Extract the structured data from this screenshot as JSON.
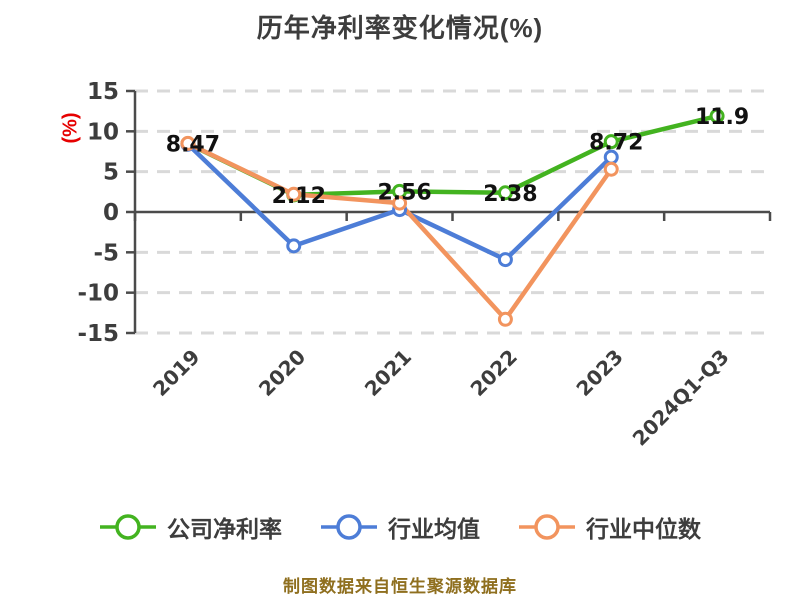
{
  "title": "历年净利率变化情况(%)",
  "footer": "制图数据来自恒生聚源数据库",
  "colors": {
    "company_green": "#43B320",
    "industry_mean_blue": "#4D7DD7",
    "industry_median_orange": "#F2945E",
    "ylabel_red": "#E60000",
    "axis": "#4B4B4B",
    "grid": "#D9D9D9",
    "text": "#3D3D3D",
    "point_label": "#111111",
    "footer_text": "#8F6F1F",
    "marker_fill": "#FFFFFF"
  },
  "chart_data": {
    "type": "line",
    "title": "历年净利率变化情况(%)",
    "categories": [
      "2019",
      "2020",
      "2021",
      "2022",
      "2023",
      "2024Q1-Q3"
    ],
    "series": [
      {
        "key": "company-net-margin",
        "name": "公司净利率",
        "color": "#43B320",
        "values": [
          8.47,
          2.12,
          2.56,
          2.38,
          8.72,
          11.9
        ],
        "point_labels": [
          "8.47",
          "2.12",
          "2.56",
          "2.38",
          "8.72",
          "11.9"
        ],
        "show_labels": true
      },
      {
        "key": "industry-mean",
        "name": "行业均值",
        "color": "#4D7DD7",
        "values": [
          8.4,
          -4.2,
          0.3,
          -5.9,
          6.8
        ],
        "show_labels": false
      },
      {
        "key": "industry-median",
        "name": "行业中位数",
        "color": "#F2945E",
        "values": [
          8.5,
          2.2,
          1.1,
          -13.3,
          5.3
        ],
        "show_labels": false
      }
    ],
    "xlabel": "",
    "ylabel": "(%)",
    "ylim": [
      -15,
      15
    ],
    "yticks": [
      15,
      10,
      5,
      0,
      -5,
      -10,
      -15
    ],
    "ytick_labels": [
      "15",
      "10",
      "5",
      "0",
      "-5",
      "-10",
      "-15"
    ],
    "grid": "horizontal-dashed",
    "legend_position": "bottom",
    "marker": "circle-white-fill",
    "x_tick_rotation": -45
  }
}
